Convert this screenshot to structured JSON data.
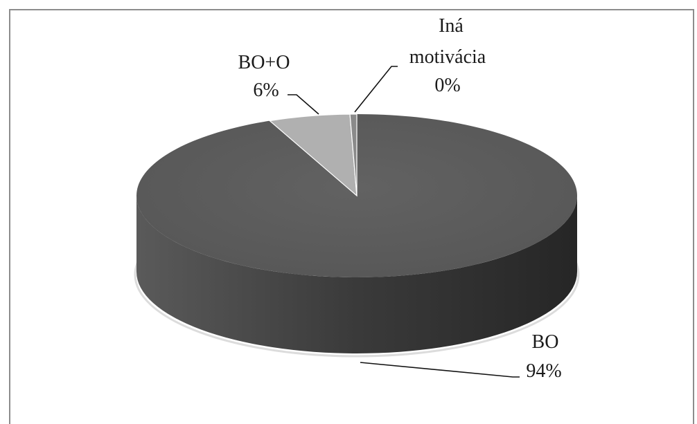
{
  "chart_data": {
    "type": "pie",
    "style": "3d",
    "title": "",
    "categories": [
      "BO",
      "BO+O",
      "Iná motivácia"
    ],
    "values": [
      94,
      6,
      0
    ],
    "data_labels": [
      {
        "name": "BO",
        "value": "94%"
      },
      {
        "name": "BO+O",
        "value": "6%"
      },
      {
        "name_lines": [
          "Iná",
          "motivácia"
        ],
        "value": "0%"
      }
    ],
    "colors": [
      "#5e5e5e",
      "#b0b0b0",
      "#8a8a8a"
    ],
    "legend": "none"
  }
}
